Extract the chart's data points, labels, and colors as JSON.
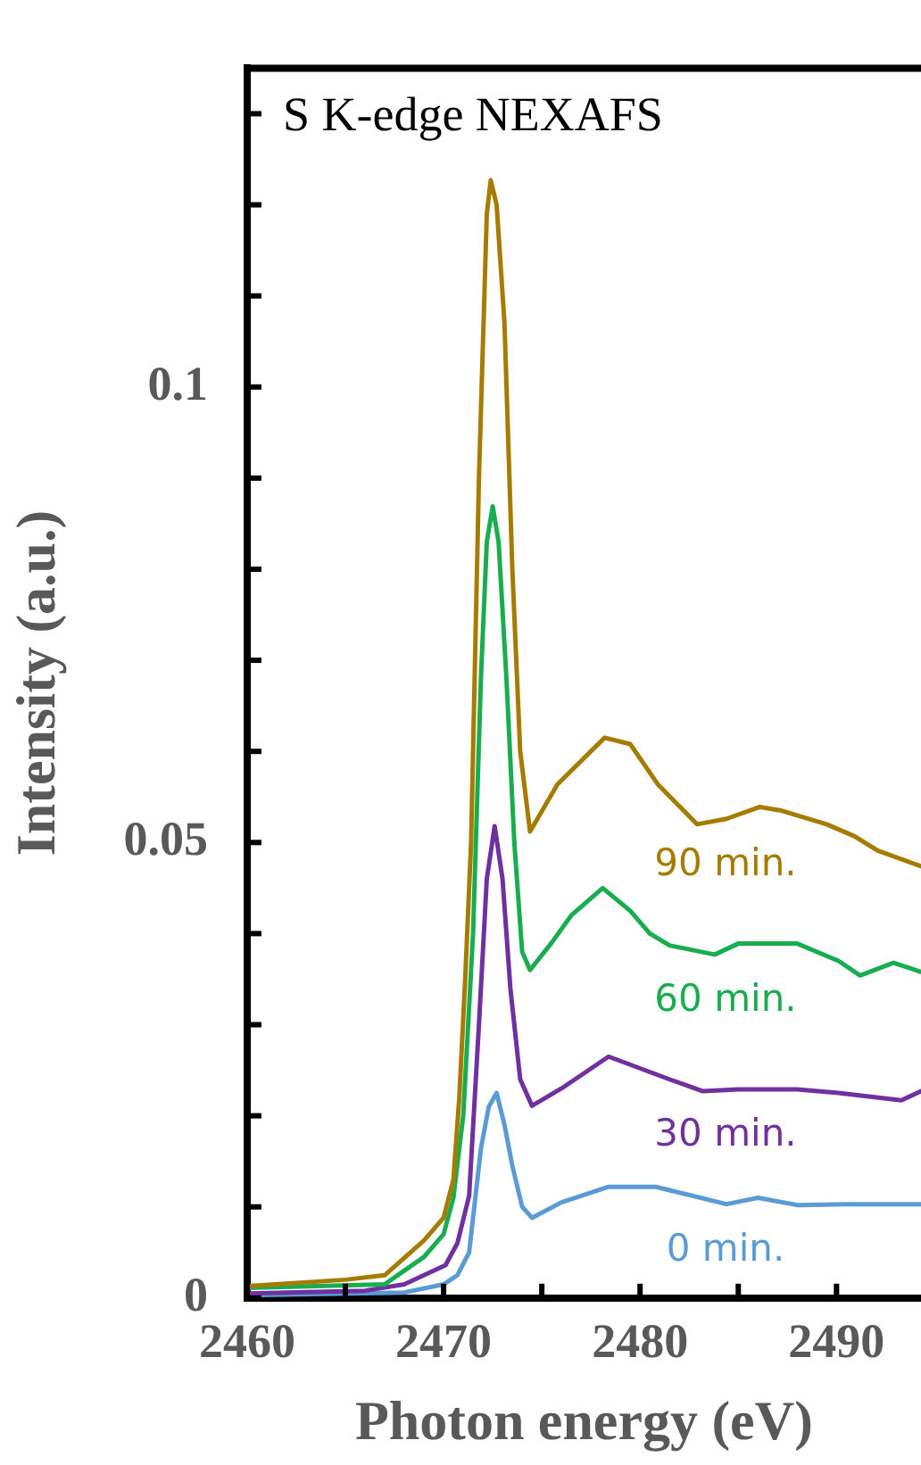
{
  "chart_data": {
    "type": "line",
    "title": "S K-edge NEXAFS",
    "xlabel": "Photon energy (eV)",
    "ylabel": "Intensity (a.u.)",
    "xlim": [
      2460,
      2494.3
    ],
    "ylim": [
      0,
      0.135
    ],
    "xticks": [
      2460,
      {
        "value": 2465,
        "label": null
      },
      2470,
      {
        "value": 2475,
        "label": null
      },
      2480,
      {
        "value": 2485,
        "label": null
      },
      2490
    ],
    "yticks": [
      0,
      {
        "value": 0.01,
        "label": null
      },
      {
        "value": 0.02,
        "label": null
      },
      {
        "value": 0.03,
        "label": null
      },
      {
        "value": 0.04,
        "label": null
      },
      0.05,
      {
        "value": 0.06,
        "label": null
      },
      {
        "value": 0.07,
        "label": null
      },
      {
        "value": 0.08,
        "label": null
      },
      {
        "value": 0.09,
        "label": null
      },
      0.1,
      {
        "value": 0.11,
        "label": null
      },
      {
        "value": 0.12,
        "label": null
      },
      {
        "value": 0.13,
        "label": null
      }
    ],
    "grid": false,
    "legend": false,
    "marker": "none",
    "line_style": "solid",
    "series": [
      {
        "name": "90 min.",
        "color": "#a67c00",
        "x": [
          2460,
          2465,
          2467,
          2468,
          2469,
          2470,
          2470.5,
          2470.8,
          2471.1,
          2471.4,
          2471.8,
          2472.2,
          2472.4,
          2472.7,
          2473.1,
          2473.5,
          2473.9,
          2474.4,
          2475.8,
          2478.2,
          2479.5,
          2480.9,
          2482.9,
          2484.4,
          2486.1,
          2487.2,
          2489.5,
          2490.9,
          2492.1,
          2494.3
        ],
        "values": [
          0.0013,
          0.002,
          0.0025,
          0.0044,
          0.0063,
          0.0088,
          0.013,
          0.022,
          0.035,
          0.05,
          0.09,
          0.119,
          0.1227,
          0.12,
          0.107,
          0.08,
          0.06,
          0.0512,
          0.0564,
          0.0615,
          0.0608,
          0.0564,
          0.052,
          0.0526,
          0.0539,
          0.0535,
          0.052,
          0.0507,
          0.0491,
          0.0474
        ]
      },
      {
        "name": "60 min.",
        "color": "#19ad4f",
        "x": [
          2460,
          2467,
          2468,
          2469,
          2470,
          2470.5,
          2471,
          2471.5,
          2471.9,
          2472.2,
          2472.5,
          2472.8,
          2473.2,
          2473.6,
          2474,
          2474.4,
          2475.5,
          2476.5,
          2478.1,
          2479.5,
          2480.5,
          2481.5,
          2483.8,
          2485,
          2488,
          2490.1,
          2491.2,
          2492.9,
          2494.3
        ],
        "values": [
          0.0011,
          0.0015,
          0.003,
          0.0045,
          0.007,
          0.011,
          0.02,
          0.04,
          0.068,
          0.083,
          0.0869,
          0.083,
          0.068,
          0.05,
          0.038,
          0.036,
          0.039,
          0.042,
          0.045,
          0.0425,
          0.04,
          0.0387,
          0.0377,
          0.0389,
          0.0389,
          0.037,
          0.0354,
          0.0368,
          0.0358
        ]
      },
      {
        "name": "30 min.",
        "color": "#7030a0",
        "x": [
          2460,
          2466,
          2468,
          2469,
          2470.1,
          2470.7,
          2471.3,
          2471.8,
          2472.2,
          2472.6,
          2473,
          2473.4,
          2473.9,
          2474.5,
          2476,
          2478.4,
          2481.5,
          2483.2,
          2485,
          2488,
          2490.1,
          2493.3,
          2494.3
        ],
        "values": [
          0.0005,
          0.0008,
          0.0015,
          0.0025,
          0.0036,
          0.006,
          0.0112,
          0.03,
          0.046,
          0.0518,
          0.046,
          0.034,
          0.024,
          0.0211,
          0.023,
          0.0265,
          0.024,
          0.0227,
          0.0229,
          0.0229,
          0.0225,
          0.0217,
          0.0227
        ]
      },
      {
        "name": "0 min.",
        "color": "#5b9bd5",
        "x": [
          2460,
          2468,
          2470,
          2470.7,
          2471.3,
          2471.9,
          2472.3,
          2472.7,
          2473.1,
          2473.5,
          2474,
          2474.5,
          2476,
          2478.4,
          2480.8,
          2484.4,
          2486,
          2488,
          2490.5,
          2494.3
        ],
        "values": [
          0.0003,
          0.0006,
          0.0015,
          0.0025,
          0.005,
          0.0164,
          0.021,
          0.0225,
          0.019,
          0.0145,
          0.01,
          0.0088,
          0.0105,
          0.0122,
          0.0122,
          0.0103,
          0.011,
          0.0102,
          0.0103,
          0.0103
        ]
      }
    ]
  }
}
